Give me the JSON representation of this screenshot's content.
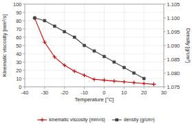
{
  "chart_data": {
    "type": "line",
    "xlabel": "Temperature [°C]",
    "ylabel": "Kinematic viscosity [mm²/s]",
    "y2label": "Density [g/cm³]",
    "xlim": [
      -40,
      30
    ],
    "xticks": [
      -40,
      -30,
      -20,
      -10,
      0,
      10,
      20,
      30
    ],
    "ylim": [
      0,
      100
    ],
    "yticks": [
      0,
      10,
      20,
      30,
      40,
      50,
      60,
      70,
      80,
      90,
      100
    ],
    "y2lim": [
      1.075,
      1.105
    ],
    "y2ticks": [
      1.075,
      {
        "value": 1.08,
        "label": "1.080"
      },
      1.085,
      {
        "value": 1.09,
        "label": "1.090"
      },
      1.095,
      {
        "value": 1.1,
        "label": "1.100"
      },
      1.105
    ],
    "grid": true,
    "legend": "bottom",
    "series": [
      {
        "name": "kinematic viscosity (mm²/s)",
        "color": "#cc0000",
        "marker": "plus",
        "x": [
          -35,
          -30,
          -25,
          -20,
          -15,
          -10,
          -5,
          0,
          5,
          10,
          15,
          20,
          25
        ],
        "values": [
          83,
          54,
          36,
          26,
          19,
          14,
          9,
          8,
          7,
          6,
          5,
          4,
          3
        ]
      },
      {
        "name": "density (g/cm³)",
        "color": "#444444",
        "marker": "square",
        "axis": "y2",
        "x": [
          -35,
          -30,
          -25,
          -20,
          -15,
          -10,
          -5,
          0,
          5,
          10,
          15,
          20
        ],
        "values": [
          1.1,
          1.099,
          1.097,
          1.095,
          1.093,
          1.09,
          1.088,
          1.086,
          1.084,
          1.082,
          1.08,
          1.078
        ]
      }
    ]
  }
}
